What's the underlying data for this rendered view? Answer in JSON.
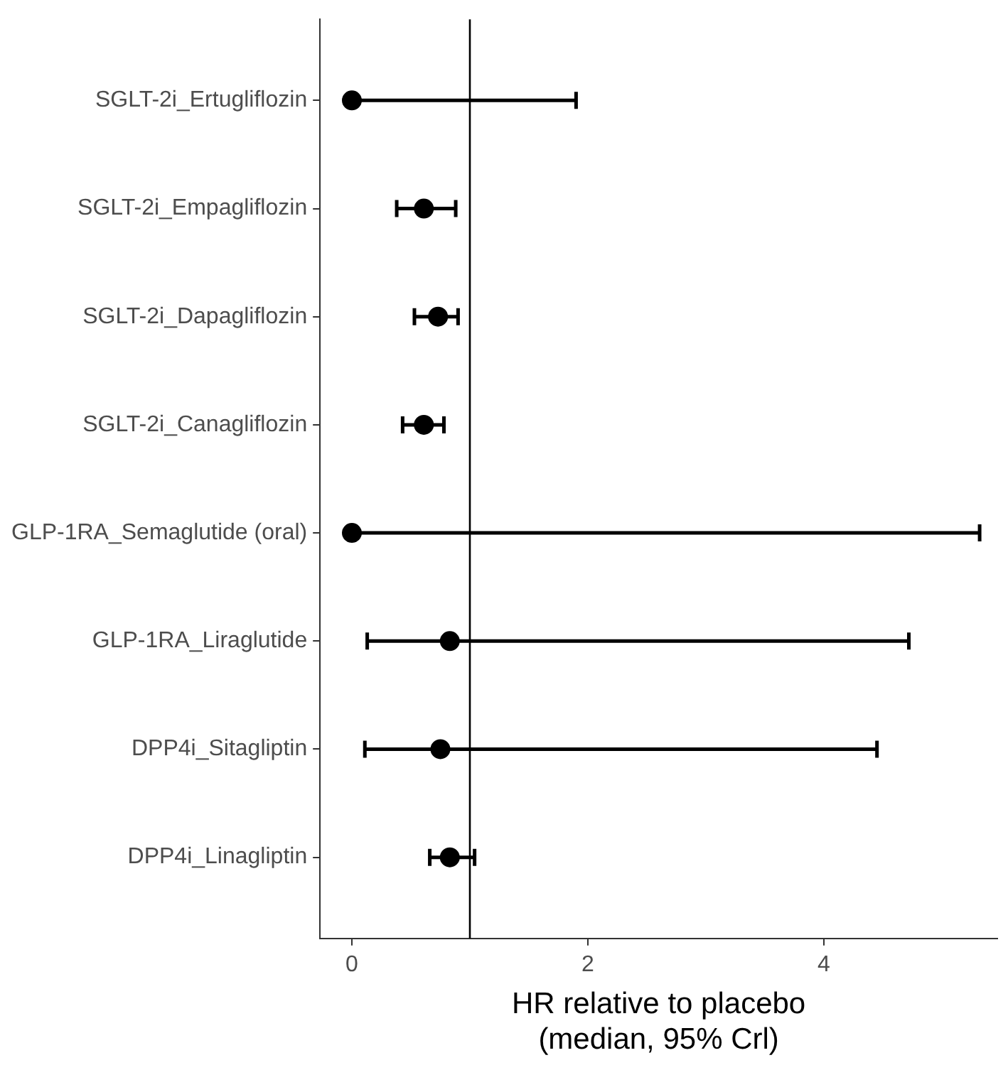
{
  "chart_data": {
    "type": "scatter",
    "orientation": "horizontal",
    "xlabel": "HR relative to placebo\n(median, 95% Crl)",
    "categories": [
      "SGLT-2i_Ertugliflozin",
      "SGLT-2i_Empagliflozin",
      "SGLT-2i_Dapagliflozin",
      "SGLT-2i_Canagliflozin",
      "GLP-1RA_Semaglutide (oral)",
      "GLP-1RA_Liraglutide",
      "DPP4i_Sitagliptin",
      "DPP4i_Linagliptin"
    ],
    "values": [
      0.0,
      0.61,
      0.73,
      0.61,
      0.0,
      0.83,
      0.75,
      0.83
    ],
    "errors": [
      [
        0.0,
        1.9
      ],
      [
        0.38,
        0.88
      ],
      [
        0.53,
        0.9
      ],
      [
        0.43,
        0.78
      ],
      [
        0.0,
        5.32
      ],
      [
        0.13,
        4.72
      ],
      [
        0.11,
        4.45
      ],
      [
        0.66,
        1.04
      ]
    ],
    "color": "#000000",
    "marker": "circle",
    "xlim": [
      -0.27,
      5.47
    ],
    "xticks": [
      0,
      2,
      4
    ],
    "ref_lines": [
      {
        "axis": "x",
        "value": 1,
        "color": "#000000"
      }
    ],
    "grid": false,
    "legend": false
  }
}
